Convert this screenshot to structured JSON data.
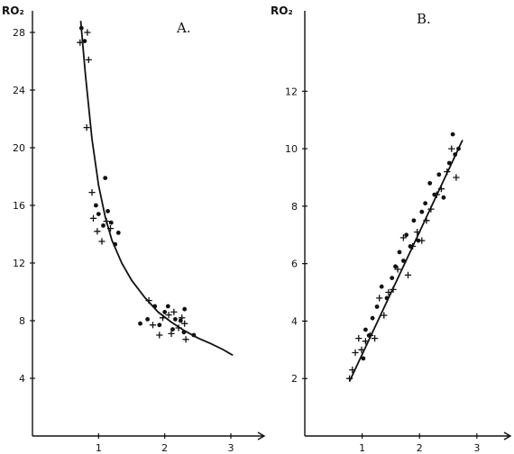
{
  "chart_data": [
    {
      "type": "scatter",
      "panel_label": "A.",
      "ylabel": "RO₂",
      "xlabel": "",
      "xlim": [
        0,
        3.6
      ],
      "ylim": [
        0,
        29.5
      ],
      "xticks": [
        1,
        2,
        3
      ],
      "yticks": [
        4,
        8,
        12,
        16,
        20,
        24,
        28
      ],
      "fit_curve": {
        "type": "hyperbola",
        "x": [
          0.73,
          0.8,
          0.9,
          1.0,
          1.1,
          1.2,
          1.35,
          1.5,
          1.7,
          1.9,
          2.1,
          2.3,
          2.5,
          2.7,
          2.88,
          3.03
        ],
        "y": [
          28.8,
          25.1,
          20.6,
          17.4,
          15.2,
          13.6,
          12.0,
          10.8,
          9.6,
          8.6,
          7.9,
          7.3,
          6.8,
          6.4,
          6.0,
          5.6
        ]
      },
      "series": [
        {
          "marker": "dot",
          "x": [
            0.74,
            0.79,
            0.96,
            1.0,
            1.07,
            1.1,
            1.14,
            1.19,
            1.25,
            1.3,
            1.63,
            1.74,
            1.85,
            1.92,
            2.0,
            2.05,
            2.12,
            2.16,
            2.24,
            2.29,
            2.3,
            2.44
          ],
          "y": [
            28.3,
            27.4,
            16.0,
            15.4,
            14.6,
            17.9,
            15.6,
            14.8,
            13.3,
            14.1,
            7.8,
            8.1,
            9.0,
            7.7,
            8.6,
            9.0,
            7.4,
            8.1,
            8.0,
            7.2,
            8.8,
            7.0
          ]
        },
        {
          "marker": "plus",
          "x": [
            0.72,
            0.83,
            0.85,
            0.82,
            0.9,
            0.92,
            0.98,
            1.05,
            1.12,
            1.18,
            1.76,
            1.82,
            1.92,
            1.97,
            2.06,
            2.1,
            2.14,
            2.21,
            2.26,
            2.3,
            2.32
          ],
          "y": [
            27.3,
            28.0,
            26.1,
            21.4,
            16.9,
            15.1,
            14.2,
            13.5,
            14.9,
            14.4,
            9.4,
            7.7,
            7.0,
            8.2,
            8.4,
            7.1,
            8.6,
            7.5,
            8.2,
            7.8,
            6.7
          ]
        }
      ]
    },
    {
      "type": "scatter",
      "panel_label": "B.",
      "ylabel": "RO₂",
      "xlabel": "",
      "xlim": [
        0,
        3.6
      ],
      "ylim": [
        0,
        14.8
      ],
      "xticks": [
        1,
        2,
        3
      ],
      "yticks": [
        2,
        4,
        6,
        8,
        10,
        12
      ],
      "fit_curve": {
        "type": "line",
        "x": [
          0.78,
          2.75
        ],
        "y": [
          1.9,
          10.3
        ]
      },
      "series": [
        {
          "marker": "dot",
          "x": [
            1.02,
            1.06,
            1.12,
            1.18,
            1.26,
            1.34,
            1.43,
            1.52,
            1.58,
            1.65,
            1.72,
            1.77,
            1.84,
            1.9,
            1.98,
            2.04,
            2.1,
            2.18,
            2.26,
            2.34,
            2.42,
            2.52,
            2.58,
            2.62,
            2.68
          ],
          "y": [
            2.7,
            3.7,
            3.5,
            4.1,
            4.5,
            5.2,
            4.8,
            5.5,
            5.9,
            6.4,
            6.1,
            7.0,
            6.6,
            7.5,
            6.8,
            7.8,
            8.1,
            8.8,
            8.4,
            9.1,
            8.3,
            9.5,
            10.5,
            9.8,
            10.0
          ]
        },
        {
          "marker": "plus",
          "x": [
            0.78,
            0.83,
            0.88,
            0.94,
            0.99,
            1.06,
            1.14,
            1.22,
            1.3,
            1.38,
            1.46,
            1.54,
            1.62,
            1.72,
            1.8,
            1.88,
            1.96,
            2.04,
            2.12,
            2.2,
            2.3,
            2.38,
            2.48,
            2.56,
            2.64
          ],
          "y": [
            2.0,
            2.3,
            2.9,
            3.4,
            3.0,
            3.3,
            3.5,
            3.4,
            4.8,
            4.2,
            5.0,
            5.1,
            5.8,
            6.9,
            5.6,
            6.6,
            7.1,
            6.8,
            7.5,
            7.9,
            8.4,
            8.6,
            9.2,
            10.0,
            9.0
          ]
        }
      ]
    }
  ]
}
